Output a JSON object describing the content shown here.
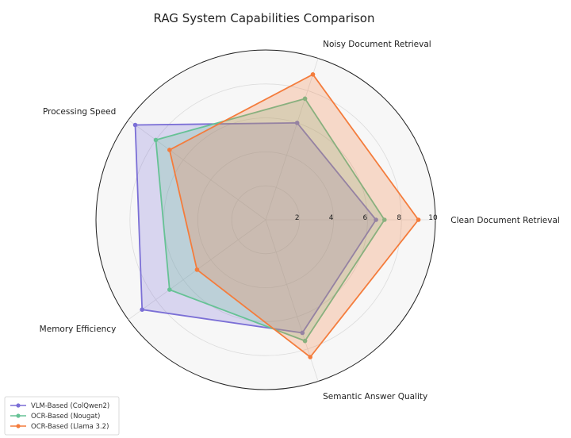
{
  "chart_data": {
    "type": "radar",
    "title": "RAG System Capabilities Comparison",
    "axes": [
      "Clean Document Retrieval",
      "Noisy Document Retrieval",
      "Processing Speed",
      "Memory Efficiency",
      "Semantic Answer Quality"
    ],
    "rlim": [
      0,
      10
    ],
    "ticks": [
      2,
      4,
      6,
      8,
      10
    ],
    "grid": true,
    "legend_position": "bottom-left",
    "series": [
      {
        "name": "VLM-Based (ColQwen2)",
        "color": "#7b6fd6",
        "values": [
          6.5,
          6.0,
          9.5,
          9.0,
          7.0
        ]
      },
      {
        "name": "OCR-Based (Nougat)",
        "color": "#66c295",
        "values": [
          7.0,
          7.5,
          8.0,
          7.0,
          7.5
        ]
      },
      {
        "name": "OCR-Based (Llama 3.2)",
        "color": "#f47c3c",
        "values": [
          9.0,
          9.0,
          7.0,
          5.0,
          8.5
        ]
      }
    ]
  }
}
